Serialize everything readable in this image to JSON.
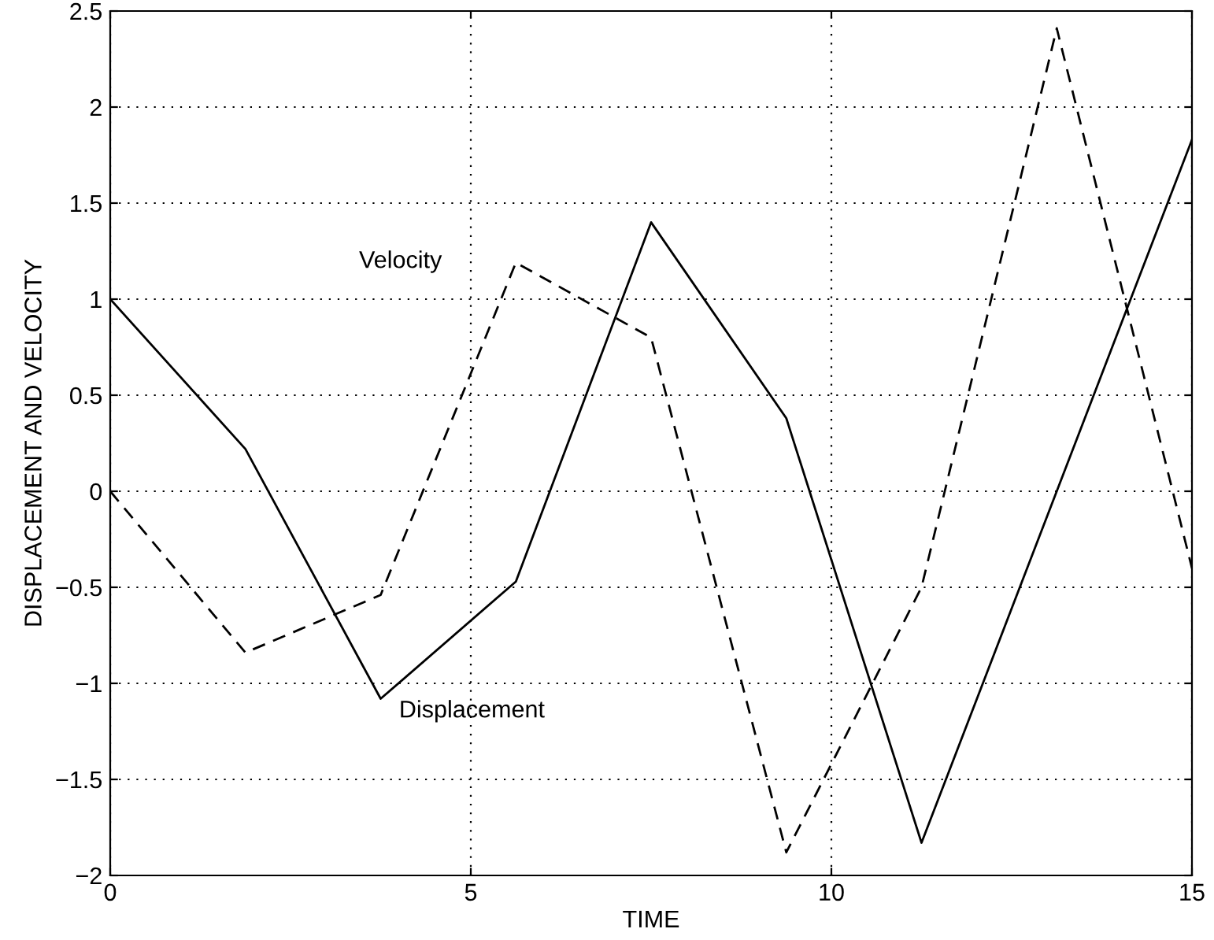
{
  "chart_data": {
    "type": "line",
    "xlabel": "TIME",
    "ylabel": "DISPLACEMENT AND VELOCITY",
    "x": [
      0,
      1.875,
      3.75,
      5.625,
      7.5,
      9.375,
      11.25,
      13.125,
      15
    ],
    "series": [
      {
        "color": "#000000",
        "line_style": "solid",
        "values": [
          1.0,
          0.22,
          -1.08,
          -0.47,
          1.4,
          0.38,
          -1.83,
          0.0,
          1.83
        ]
      },
      {
        "color": "#000000",
        "line_style": "dashed",
        "values": [
          0.0,
          -0.84,
          -0.54,
          1.19,
          0.8,
          -1.88,
          -0.5,
          2.41,
          -0.4
        ]
      }
    ],
    "annotations": [
      "Velocity",
      "Displacement"
    ],
    "xlim": [
      0,
      15
    ],
    "xticks": [
      0,
      5,
      10,
      15
    ],
    "ylim": [
      -2,
      2.5
    ],
    "yticks": [
      {
        "value": -2,
        "label": "−2"
      },
      {
        "value": -1.5,
        "label": "−1.5"
      },
      {
        "value": -1,
        "label": "−1"
      },
      {
        "value": -0.5,
        "label": "−0.5"
      },
      0,
      0.5,
      1,
      1.5,
      2,
      2.5
    ],
    "grid": true,
    "legend": false
  }
}
